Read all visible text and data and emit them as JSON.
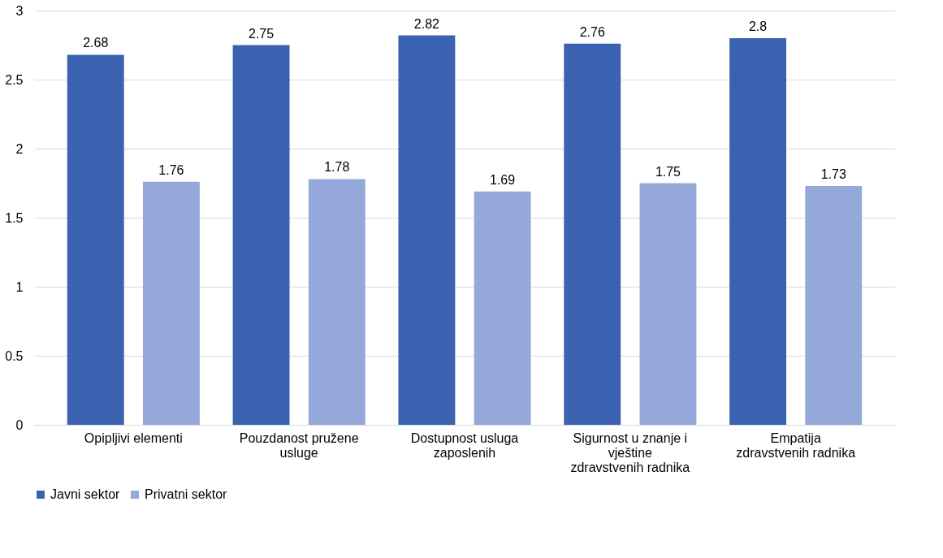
{
  "chart_data": {
    "type": "bar",
    "categories": [
      "Opipljivi elementi",
      "Pouzdanost pružene usluge",
      "Dostupnost usluga zaposlenih",
      "Sigurnost u znanje i vještine zdravstvenih radnika",
      "Empatija zdravstvenih radnika"
    ],
    "series": [
      {
        "name": "Javni sektor",
        "color": "#3a62b0",
        "values": [
          2.68,
          2.75,
          2.82,
          2.76,
          2.8
        ]
      },
      {
        "name": "Privatni sektor",
        "color": "#94a8da",
        "values": [
          1.76,
          1.78,
          1.69,
          1.75,
          1.73
        ]
      }
    ],
    "ylim": [
      0,
      3
    ],
    "yticks": [
      0,
      0.5,
      1,
      1.5,
      2,
      2.5,
      3
    ],
    "grid": "y",
    "legend": "bottom",
    "data_labels": true
  }
}
